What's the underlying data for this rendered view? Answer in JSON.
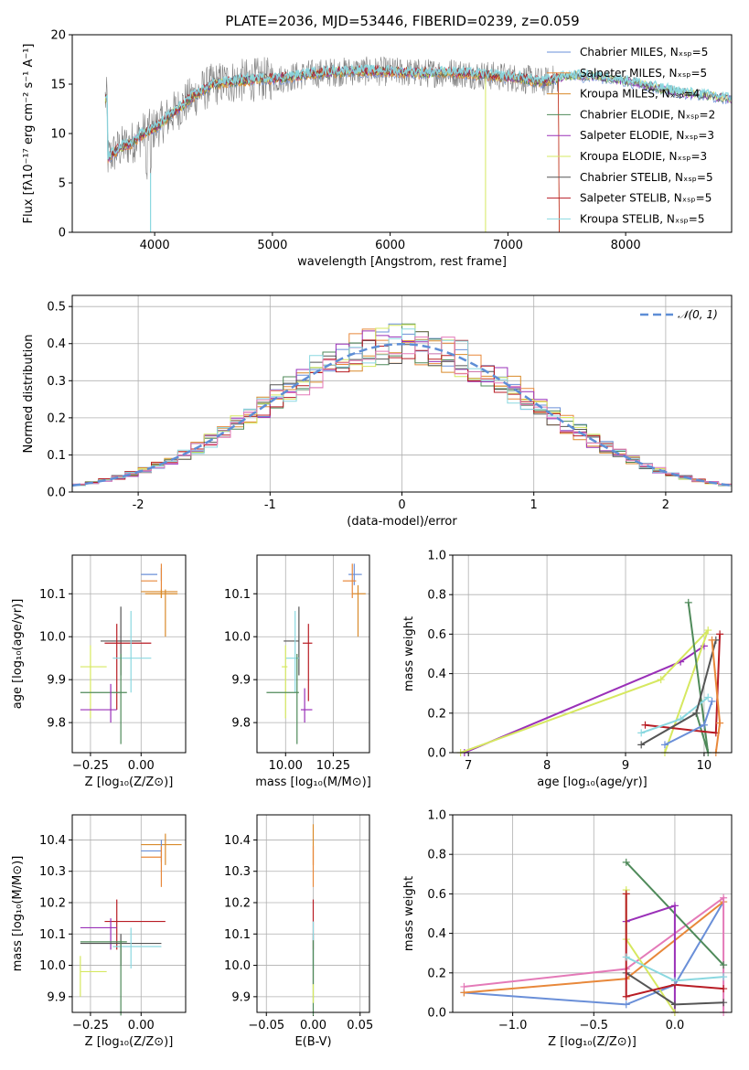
{
  "figure": {
    "title": "PLATE=2036, MJD=53446, FIBERID=0239, z=0.059"
  },
  "colors": {
    "Chabrier MILES": "#6a8fd8",
    "Salpeter MILES": "#e8883a",
    "Kroupa MILES": "#d98a2a",
    "Chabrier ELODIE": "#4f8a5a",
    "Salpeter ELODIE": "#9a30b8",
    "Kroupa ELODIE": "#d6e860",
    "Chabrier STELIB": "#555555",
    "Salpeter STELIB": "#b81c24",
    "Kroupa STELIB": "#8ad8e0",
    "data": "#808080",
    "gaussian": "#5e8ed6",
    "pink": "#e47ab8"
  },
  "chart_data": [
    {
      "id": "spectrum",
      "type": "line",
      "title": "PLATE=2036, MJD=53446, FIBERID=0239, z=0.059",
      "xlabel": "wavelength [Angstrom, rest frame]",
      "ylabel": "Flux [f_λ 10^-17 erg cm^-2 s^-1 A^-1]",
      "xlim": [
        3300,
        8900
      ],
      "ylim": [
        0,
        20
      ],
      "xticks": [
        4000,
        5000,
        6000,
        7000,
        8000
      ],
      "yticks": [
        0,
        5,
        10,
        15,
        20
      ],
      "grid": false,
      "legend_position": "top-right",
      "legend": [
        "Chabrier MILES, N_SSP=5",
        "Salpeter MILES, N_SSP=5",
        "Kroupa MILES, N_SSP=4",
        "Chabrier ELODIE, N_SSP=2",
        "Salpeter ELODIE, N_SSP=3",
        "Kroupa ELODIE, N_SSP=3",
        "Chabrier STELIB, N_SSP=5",
        "Salpeter STELIB, N_SSP=5",
        "Kroupa STELIB, N_SSP=5"
      ],
      "continuum": {
        "x": [
          3600,
          3700,
          3800,
          3900,
          4000,
          4100,
          4200,
          4300,
          4400,
          4500,
          4700,
          4900,
          5100,
          5300,
          5500,
          5700,
          5900,
          6100,
          6300,
          6500,
          6700,
          6900,
          7100,
          7300,
          7500,
          7700,
          7900,
          8100,
          8300,
          8500,
          8700,
          8900
        ],
        "y": [
          7.5,
          8.5,
          9.0,
          10.0,
          10.5,
          11.5,
          12.5,
          13.5,
          14.3,
          15.0,
          15.3,
          15.5,
          15.6,
          16.0,
          16.2,
          16.3,
          16.3,
          16.2,
          16.1,
          16.2,
          16.0,
          15.8,
          15.6,
          15.2,
          15.8,
          15.8,
          15.5,
          15.1,
          14.5,
          14.1,
          13.8,
          13.5
        ]
      }
    },
    {
      "id": "residual_histogram",
      "type": "bar",
      "xlabel": "(data-model)/error",
      "ylabel": "Normed distribution",
      "xlim": [
        -2.5,
        2.5
      ],
      "ylim": [
        0,
        0.53
      ],
      "xticks": [
        -2,
        -1,
        0,
        1,
        2
      ],
      "yticks": [
        0.0,
        0.1,
        0.2,
        0.3,
        0.4,
        0.5
      ],
      "grid": true,
      "legend_position": "top-right",
      "legend": [
        "N(0,1)"
      ],
      "bin_width": 0.1
    },
    {
      "id": "age_vs_Z",
      "type": "scatter",
      "xlabel": "Z [log10(Z/Z☉)]",
      "ylabel": "age [log10(age/yr)]",
      "xlim": [
        -0.34,
        0.22
      ],
      "ylim": [
        9.73,
        10.19
      ],
      "xticks": [
        -0.25,
        0.0
      ],
      "xticklabels": [
        "−0.25",
        "0.00"
      ],
      "yticks": [
        9.8,
        9.9,
        10.0,
        10.1
      ],
      "grid": true,
      "points": [
        {
          "series": "Chabrier MILES",
          "x": 0.1,
          "y": 10.145,
          "ex": [
            -0.0,
            0.08
          ],
          "ey": [
            10.13,
            10.16
          ]
        },
        {
          "series": "Salpeter MILES",
          "x": 0.1,
          "y": 10.13,
          "ex": [
            0.0,
            0.08
          ],
          "ey": [
            10.09,
            10.17
          ]
        },
        {
          "series": "Kroupa MILES",
          "x": 0.1,
          "y": 10.1,
          "ex": [
            0.02,
            0.18
          ],
          "ey": [
            10.09,
            10.11
          ]
        },
        {
          "series": "Kroupa MILES",
          "x": 0.12,
          "y": 10.105,
          "ex": [
            0.0,
            0.18
          ],
          "ey": [
            10.0,
            10.11
          ]
        },
        {
          "series": "Chabrier STELIB",
          "x": -0.1,
          "y": 9.99,
          "ex": [
            -0.2,
            0.0
          ],
          "ey": [
            9.91,
            10.07
          ]
        },
        {
          "series": "Salpeter STELIB",
          "x": -0.12,
          "y": 9.985,
          "ex": [
            -0.18,
            0.05
          ],
          "ey": [
            9.83,
            10.03
          ]
        },
        {
          "series": "Kroupa STELIB",
          "x": -0.05,
          "y": 9.95,
          "ex": [
            -0.14,
            0.05
          ],
          "ey": [
            9.87,
            10.06
          ]
        },
        {
          "series": "Kroupa ELODIE",
          "x": -0.25,
          "y": 9.93,
          "ex": [
            -0.3,
            -0.17
          ],
          "ey": [
            9.81,
            9.98
          ]
        },
        {
          "series": "Chabrier ELODIE",
          "x": -0.1,
          "y": 9.87,
          "ex": [
            -0.3,
            -0.07
          ],
          "ey": [
            9.75,
            9.96
          ]
        },
        {
          "series": "Salpeter ELODIE",
          "x": -0.15,
          "y": 9.83,
          "ex": [
            -0.3,
            -0.12
          ],
          "ey": [
            9.8,
            9.89
          ]
        }
      ]
    },
    {
      "id": "age_vs_mass",
      "type": "scatter",
      "xlabel": "mass [log10(M/M☉)]",
      "xlim": [
        9.85,
        10.44
      ],
      "ylim": [
        9.73,
        10.19
      ],
      "xticks": [
        10.0,
        10.25
      ],
      "xticklabels": [
        "10.00",
        "10.25"
      ],
      "yticks": [
        9.8,
        9.9,
        10.0,
        10.1
      ],
      "grid": true,
      "points": [
        {
          "series": "Chabrier MILES",
          "x": 10.36,
          "y": 10.145,
          "ex": [
            10.33,
            10.4
          ],
          "ey": [
            10.12,
            10.17
          ]
        },
        {
          "series": "Salpeter MILES",
          "x": 10.35,
          "y": 10.13,
          "ex": [
            10.3,
            10.37
          ],
          "ey": [
            10.09,
            10.17
          ]
        },
        {
          "series": "Kroupa MILES",
          "x": 10.38,
          "y": 10.1,
          "ex": [
            10.35,
            10.42
          ],
          "ey": [
            10.0,
            10.12
          ]
        },
        {
          "series": "Chabrier STELIB",
          "x": 10.07,
          "y": 9.99,
          "ex": [
            9.99,
            10.07
          ],
          "ey": [
            9.91,
            10.07
          ]
        },
        {
          "series": "Salpeter STELIB",
          "x": 10.12,
          "y": 9.985,
          "ex": [
            10.09,
            10.14
          ],
          "ey": [
            9.85,
            10.03
          ]
        },
        {
          "series": "Kroupa STELIB",
          "x": 10.05,
          "y": 9.95,
          "ex": [
            10.0,
            10.07
          ],
          "ey": [
            9.87,
            10.06
          ]
        },
        {
          "series": "Kroupa ELODIE",
          "x": 10.0,
          "y": 9.93,
          "ex": [
            9.98,
            10.01
          ],
          "ey": [
            9.81,
            9.98
          ]
        },
        {
          "series": "Chabrier ELODIE",
          "x": 10.06,
          "y": 9.87,
          "ex": [
            9.9,
            10.07
          ],
          "ey": [
            9.75,
            9.96
          ]
        },
        {
          "series": "Salpeter ELODIE",
          "x": 10.1,
          "y": 9.83,
          "ex": [
            10.08,
            10.14
          ],
          "ey": [
            9.8,
            9.88
          ]
        }
      ]
    },
    {
      "id": "weight_vs_age",
      "type": "line",
      "xlabel": "age [log10(age/yr)]",
      "ylabel": "mass weight",
      "xlim": [
        6.8,
        10.35
      ],
      "ylim": [
        0,
        1
      ],
      "xticks": [
        7,
        8,
        9,
        10
      ],
      "yticks": [
        0.0,
        0.2,
        0.4,
        0.6,
        0.8,
        1.0
      ],
      "grid": true,
      "series": [
        {
          "name": "Salpeter ELODIE",
          "x": [
            6.95,
            9.7,
            10.0
          ],
          "y": [
            0.0,
            0.46,
            0.54
          ]
        },
        {
          "name": "Kroupa ELODIE",
          "x": [
            6.9,
            9.45,
            10.05,
            9.5
          ],
          "y": [
            0.0,
            0.37,
            0.62,
            0.0
          ]
        },
        {
          "name": "Chabrier ELODIE",
          "x": [
            9.8,
            10.05,
            9.9
          ],
          "y": [
            0.76,
            0.0,
            0.2
          ]
        },
        {
          "name": "Salpeter STELIB",
          "x": [
            9.25,
            10.15,
            10.2
          ],
          "y": [
            0.14,
            0.1,
            0.6
          ]
        },
        {
          "name": "Chabrier MILES",
          "x": [
            9.5,
            10.0,
            10.1
          ],
          "y": [
            0.04,
            0.14,
            0.26
          ]
        },
        {
          "name": "Kroupa STELIB",
          "x": [
            9.2,
            9.7,
            10.05
          ],
          "y": [
            0.1,
            0.17,
            0.28
          ]
        },
        {
          "name": "Chabrier STELIB",
          "x": [
            9.2,
            9.9,
            10.15
          ],
          "y": [
            0.04,
            0.2,
            0.57
          ]
        },
        {
          "name": "Salpeter MILES",
          "x": [
            10.1,
            10.2,
            10.15
          ],
          "y": [
            0.57,
            0.15,
            0.0
          ]
        }
      ]
    },
    {
      "id": "mass_vs_Z",
      "type": "scatter",
      "xlabel": "Z [log10(Z/Z☉)]",
      "ylabel": "mass [log10(M/M☉)]",
      "xlim": [
        -0.34,
        0.22
      ],
      "ylim": [
        9.85,
        10.48
      ],
      "xticks": [
        -0.25,
        0.0
      ],
      "xticklabels": [
        "−0.25",
        "0.00"
      ],
      "yticks": [
        9.9,
        10.0,
        10.1,
        10.2,
        10.3,
        10.4
      ],
      "grid": true,
      "points": [
        {
          "series": "Kroupa MILES",
          "x": 0.12,
          "y": 10.385,
          "ex": [
            0.0,
            0.2
          ],
          "ey": [
            10.32,
            10.42
          ]
        },
        {
          "series": "Chabrier MILES",
          "x": 0.1,
          "y": 10.365,
          "ex": [
            0.0,
            0.1
          ],
          "ey": [
            10.33,
            10.4
          ]
        },
        {
          "series": "Salpeter MILES",
          "x": 0.1,
          "y": 10.345,
          "ex": [
            0.0,
            0.1
          ],
          "ey": [
            10.25,
            10.38
          ]
        },
        {
          "series": "Salpeter STELIB",
          "x": -0.12,
          "y": 10.14,
          "ex": [
            -0.18,
            0.12
          ],
          "ey": [
            10.05,
            10.21
          ]
        },
        {
          "series": "Salpeter ELODIE",
          "x": -0.15,
          "y": 10.12,
          "ex": [
            -0.3,
            -0.12
          ],
          "ey": [
            10.05,
            10.15
          ]
        },
        {
          "series": "Chabrier STELIB",
          "x": -0.1,
          "y": 10.07,
          "ex": [
            -0.3,
            0.1
          ],
          "ey": [
            10.0,
            10.1
          ]
        },
        {
          "series": "Kroupa STELIB",
          "x": -0.05,
          "y": 10.06,
          "ex": [
            -0.14,
            0.1
          ],
          "ey": [
            9.99,
            10.12
          ]
        },
        {
          "series": "Chabrier ELODIE",
          "x": -0.1,
          "y": 10.075,
          "ex": [
            -0.3,
            -0.07
          ],
          "ey": [
            9.84,
            10.08
          ]
        },
        {
          "series": "Kroupa ELODIE",
          "x": -0.3,
          "y": 9.98,
          "ex": [
            -0.3,
            -0.17
          ],
          "ey": [
            9.9,
            10.03
          ]
        }
      ]
    },
    {
      "id": "mass_vs_ebv",
      "type": "scatter",
      "xlabel": "E(B-V)",
      "xlim": [
        -0.06,
        0.06
      ],
      "ylim": [
        9.85,
        10.48
      ],
      "xticks": [
        -0.05,
        0.0,
        0.05
      ],
      "xticklabels": [
        "−0.05",
        "0.00",
        "0.05"
      ],
      "yticks": [
        9.9,
        10.0,
        10.1,
        10.2,
        10.3,
        10.4
      ],
      "grid": true,
      "points": [
        {
          "series": "Kroupa MILES",
          "x": 0.0,
          "y": 10.385,
          "ey": [
            10.32,
            10.45
          ]
        },
        {
          "series": "Salpeter MILES",
          "x": 0.0,
          "y": 10.3,
          "ey": [
            10.25,
            10.38
          ]
        },
        {
          "series": "Salpeter STELIB",
          "x": 0.0,
          "y": 10.14,
          "ey": [
            10.05,
            10.21
          ]
        },
        {
          "series": "Chabrier STELIB",
          "x": 0.0,
          "y": 10.07,
          "ey": [
            9.94,
            10.1
          ]
        },
        {
          "series": "Kroupa STELIB",
          "x": 0.0,
          "y": 10.06,
          "ey": [
            9.99,
            10.14
          ]
        },
        {
          "series": "Chabrier ELODIE",
          "x": 0.0,
          "y": 10.07,
          "ey": [
            9.84,
            10.08
          ]
        },
        {
          "series": "Kroupa ELODIE",
          "x": 0.0,
          "y": 9.93,
          "ey": [
            9.88,
            9.94
          ]
        }
      ]
    },
    {
      "id": "weight_vs_Z",
      "type": "line",
      "xlabel": "Z [log10(Z/Z☉)]",
      "ylabel": "mass weight",
      "xlim": [
        -1.37,
        0.35
      ],
      "ylim": [
        0,
        1
      ],
      "xticks": [
        -1.0,
        -0.5,
        0.0
      ],
      "xticklabels": [
        "−1.0",
        "−0.5",
        "0.0"
      ],
      "yticks": [
        0.0,
        0.2,
        0.4,
        0.6,
        0.8,
        1.0
      ],
      "grid": true,
      "series": [
        {
          "name": "Chabrier MILES",
          "x": [
            -1.3,
            -0.3,
            0.0,
            0.3
          ],
          "y": [
            0.1,
            0.04,
            0.14,
            0.56
          ]
        },
        {
          "name": "Salpeter MILES",
          "x": [
            -1.3,
            -0.3,
            0.3
          ],
          "y": [
            0.1,
            0.17,
            0.56
          ]
        },
        {
          "name": "pink",
          "x": [
            -1.3,
            -0.3,
            0.3,
            0.3
          ],
          "y": [
            0.13,
            0.22,
            0.58,
            0.0
          ]
        },
        {
          "name": "Chabrier ELODIE",
          "x": [
            -0.3,
            0.3
          ],
          "y": [
            0.76,
            0.24
          ]
        },
        {
          "name": "Salpeter ELODIE",
          "x": [
            -0.3,
            0.0,
            0.0
          ],
          "y": [
            0.46,
            0.54,
            0.0
          ]
        },
        {
          "name": "Kroupa ELODIE",
          "x": [
            -0.3,
            -0.3,
            0.0
          ],
          "y": [
            0.62,
            0.37,
            0.0
          ]
        },
        {
          "name": "Chabrier STELIB",
          "x": [
            -0.3,
            0.0,
            0.3
          ],
          "y": [
            0.2,
            0.04,
            0.05
          ]
        },
        {
          "name": "Salpeter STELIB",
          "x": [
            -0.3,
            -0.3,
            0.0,
            0.3
          ],
          "y": [
            0.6,
            0.08,
            0.14,
            0.12
          ]
        },
        {
          "name": "Kroupa STELIB",
          "x": [
            -0.3,
            0.0,
            0.3
          ],
          "y": [
            0.28,
            0.16,
            0.18
          ]
        }
      ]
    }
  ]
}
